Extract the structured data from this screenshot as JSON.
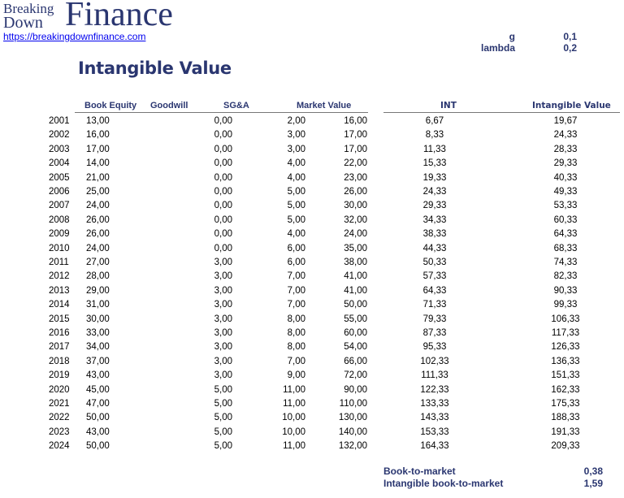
{
  "brand": {
    "logo_small_top": "Breaking",
    "logo_small_bottom": "Down",
    "logo_big": "Finance",
    "url": "https://breakingdownfinance.com"
  },
  "params": [
    {
      "label": "g",
      "value": "0,1"
    },
    {
      "label": "lambda",
      "value": "0,2"
    }
  ],
  "title": "Intangible Value",
  "colors": {
    "accent": "#2a3670",
    "link": "#0000ee",
    "rule": "#777777"
  },
  "table": {
    "headers": {
      "book_equity": "Book Equity",
      "goodwill": "Goodwill",
      "sga": "SG&A",
      "market_value": "Market Value",
      "int": "INT",
      "intangible_value": "Intangible Value"
    },
    "rows": [
      {
        "year": "2001",
        "be": "13,00",
        "gw": "0,00",
        "sga": "2,00",
        "mv": "16,00",
        "int": "6,67",
        "iv": "19,67"
      },
      {
        "year": "2002",
        "be": "16,00",
        "gw": "0,00",
        "sga": "3,00",
        "mv": "17,00",
        "int": "8,33",
        "iv": "24,33"
      },
      {
        "year": "2003",
        "be": "17,00",
        "gw": "0,00",
        "sga": "3,00",
        "mv": "17,00",
        "int": "11,33",
        "iv": "28,33"
      },
      {
        "year": "2004",
        "be": "14,00",
        "gw": "0,00",
        "sga": "4,00",
        "mv": "22,00",
        "int": "15,33",
        "iv": "29,33"
      },
      {
        "year": "2005",
        "be": "21,00",
        "gw": "0,00",
        "sga": "4,00",
        "mv": "23,00",
        "int": "19,33",
        "iv": "40,33"
      },
      {
        "year": "2006",
        "be": "25,00",
        "gw": "0,00",
        "sga": "5,00",
        "mv": "26,00",
        "int": "24,33",
        "iv": "49,33"
      },
      {
        "year": "2007",
        "be": "24,00",
        "gw": "0,00",
        "sga": "5,00",
        "mv": "30,00",
        "int": "29,33",
        "iv": "53,33"
      },
      {
        "year": "2008",
        "be": "26,00",
        "gw": "0,00",
        "sga": "5,00",
        "mv": "32,00",
        "int": "34,33",
        "iv": "60,33"
      },
      {
        "year": "2009",
        "be": "26,00",
        "gw": "0,00",
        "sga": "4,00",
        "mv": "24,00",
        "int": "38,33",
        "iv": "64,33"
      },
      {
        "year": "2010",
        "be": "24,00",
        "gw": "0,00",
        "sga": "6,00",
        "mv": "35,00",
        "int": "44,33",
        "iv": "68,33"
      },
      {
        "year": "2011",
        "be": "27,00",
        "gw": "3,00",
        "sga": "6,00",
        "mv": "38,00",
        "int": "50,33",
        "iv": "74,33"
      },
      {
        "year": "2012",
        "be": "28,00",
        "gw": "3,00",
        "sga": "7,00",
        "mv": "41,00",
        "int": "57,33",
        "iv": "82,33"
      },
      {
        "year": "2013",
        "be": "29,00",
        "gw": "3,00",
        "sga": "7,00",
        "mv": "41,00",
        "int": "64,33",
        "iv": "90,33"
      },
      {
        "year": "2014",
        "be": "31,00",
        "gw": "3,00",
        "sga": "7,00",
        "mv": "50,00",
        "int": "71,33",
        "iv": "99,33"
      },
      {
        "year": "2015",
        "be": "30,00",
        "gw": "3,00",
        "sga": "8,00",
        "mv": "55,00",
        "int": "79,33",
        "iv": "106,33"
      },
      {
        "year": "2016",
        "be": "33,00",
        "gw": "3,00",
        "sga": "8,00",
        "mv": "60,00",
        "int": "87,33",
        "iv": "117,33"
      },
      {
        "year": "2017",
        "be": "34,00",
        "gw": "3,00",
        "sga": "8,00",
        "mv": "54,00",
        "int": "95,33",
        "iv": "126,33"
      },
      {
        "year": "2018",
        "be": "37,00",
        "gw": "3,00",
        "sga": "7,00",
        "mv": "66,00",
        "int": "102,33",
        "iv": "136,33"
      },
      {
        "year": "2019",
        "be": "43,00",
        "gw": "3,00",
        "sga": "9,00",
        "mv": "72,00",
        "int": "111,33",
        "iv": "151,33"
      },
      {
        "year": "2020",
        "be": "45,00",
        "gw": "5,00",
        "sga": "11,00",
        "mv": "90,00",
        "int": "122,33",
        "iv": "162,33"
      },
      {
        "year": "2021",
        "be": "47,00",
        "gw": "5,00",
        "sga": "11,00",
        "mv": "110,00",
        "int": "133,33",
        "iv": "175,33"
      },
      {
        "year": "2022",
        "be": "50,00",
        "gw": "5,00",
        "sga": "10,00",
        "mv": "130,00",
        "int": "143,33",
        "iv": "188,33"
      },
      {
        "year": "2023",
        "be": "43,00",
        "gw": "5,00",
        "sga": "10,00",
        "mv": "140,00",
        "int": "153,33",
        "iv": "191,33"
      },
      {
        "year": "2024",
        "be": "50,00",
        "gw": "5,00",
        "sga": "11,00",
        "mv": "132,00",
        "int": "164,33",
        "iv": "209,33"
      }
    ]
  },
  "summary": [
    {
      "label": "Book-to-market",
      "value": "0,38"
    },
    {
      "label": "Intangible book-to-market",
      "value": "1,59"
    }
  ]
}
